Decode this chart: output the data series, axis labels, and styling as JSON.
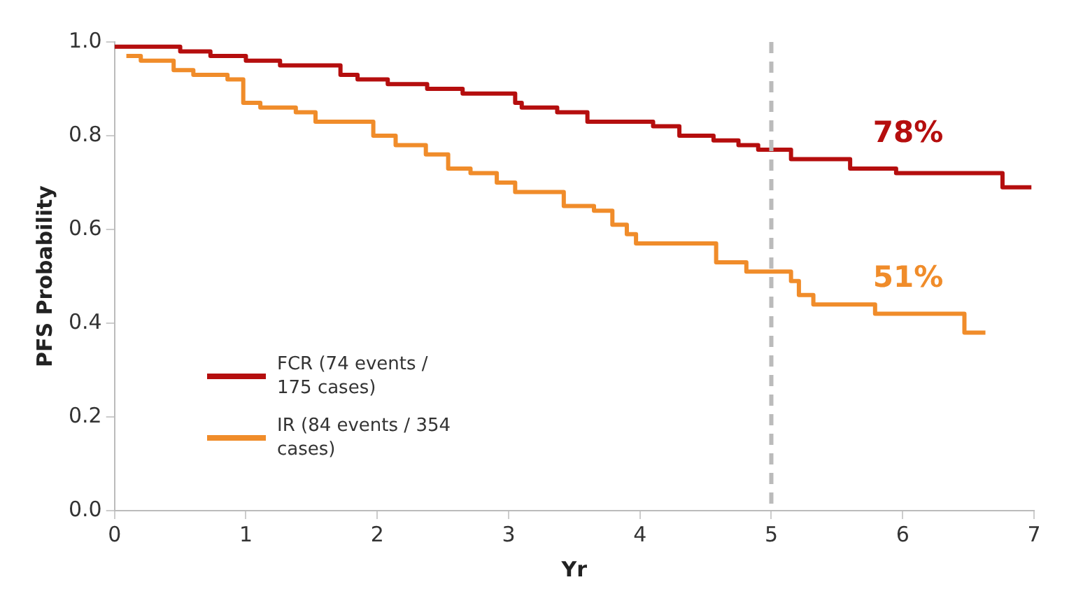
{
  "chart_data": {
    "type": "step",
    "xlabel": "Yr",
    "ylabel": "PFS Probability",
    "xlim": [
      0,
      7
    ],
    "xticks": [
      0,
      1,
      2,
      3,
      4,
      5,
      6,
      7
    ],
    "ylim": [
      0,
      1
    ],
    "yticks": [
      {
        "value": 0,
        "label": "0.0"
      },
      {
        "value": 0.2,
        "label": "0.2"
      },
      {
        "value": 0.4,
        "label": "0.4"
      },
      {
        "value": 0.6,
        "label": "0.6"
      },
      {
        "value": 0.8,
        "label": "0.8"
      },
      {
        "value": 1,
        "label": "1.0"
      }
    ],
    "series": [
      {
        "name": "FCR (74 events / 175 cases)",
        "color": "#b50e0e",
        "x": [
          0,
          0.5,
          0.73,
          1.0,
          1.26,
          1.72,
          1.85,
          2.08,
          2.38,
          2.65,
          3.05,
          3.1,
          3.37,
          3.6,
          4.1,
          4.3,
          4.56,
          4.75,
          4.9,
          5.15,
          5.6,
          5.95,
          6.76,
          6.98
        ],
        "values": [
          0.99,
          0.98,
          0.97,
          0.96,
          0.95,
          0.93,
          0.92,
          0.91,
          0.9,
          0.89,
          0.87,
          0.86,
          0.85,
          0.83,
          0.82,
          0.8,
          0.79,
          0.78,
          0.77,
          0.75,
          0.73,
          0.72,
          0.69,
          0.69
        ]
      },
      {
        "name": "IR (84 events / 354 cases)",
        "color": "#f08c2a",
        "x": [
          0.09,
          0.2,
          0.45,
          0.6,
          0.86,
          0.98,
          1.11,
          1.38,
          1.53,
          1.97,
          2.14,
          2.37,
          2.54,
          2.71,
          2.91,
          3.05,
          3.42,
          3.65,
          3.79,
          3.9,
          3.97,
          4.58,
          4.81,
          5.15,
          5.21,
          5.32,
          5.79,
          6.47,
          6.63
        ],
        "values": [
          0.97,
          0.96,
          0.94,
          0.93,
          0.92,
          0.87,
          0.86,
          0.85,
          0.83,
          0.8,
          0.78,
          0.76,
          0.73,
          0.72,
          0.7,
          0.68,
          0.65,
          0.64,
          0.61,
          0.59,
          0.57,
          0.53,
          0.51,
          0.49,
          0.46,
          0.44,
          0.42,
          0.38,
          0.38
        ]
      }
    ],
    "ref_lines": [
      {
        "axis": "x",
        "value": 5,
        "color": "#bbbbbb",
        "line_style": "dashed"
      }
    ],
    "annotations": [
      "78%",
      "51%"
    ],
    "legend": "bottom left",
    "grid": false,
    "marker": "none",
    "line_style": "solid"
  }
}
